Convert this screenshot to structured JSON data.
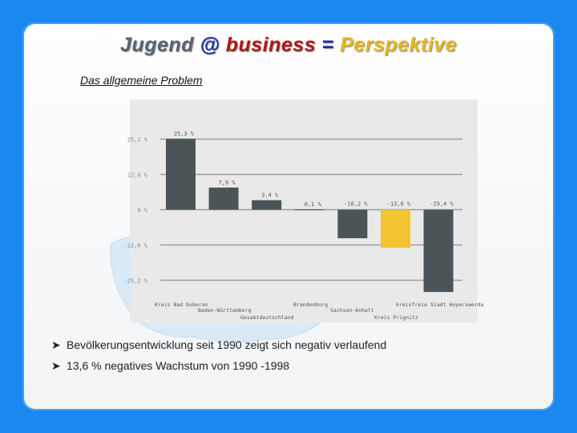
{
  "title": {
    "part1": "Jugend",
    "part2": "@",
    "part3": "business",
    "part4": "=",
    "part5": "Perspektive"
  },
  "subtitle": "Das allgemeine Problem",
  "bullets": [
    "Bevölkerungsentwicklung seit 1990 zeigt sich negativ verlaufend",
    "13,6 % negatives Wachstum von 1990 -1998"
  ],
  "bullet_icon": "arrow-right-icon",
  "colors": {
    "background": "#1a88ee",
    "bar_dark": "#4b5457",
    "bar_highlight": "#f3c431",
    "chart_bg": "#e9e9e9"
  },
  "chart_data": {
    "type": "bar",
    "title": "",
    "xlabel": "",
    "ylabel": "",
    "ylim": [
      -30,
      30
    ],
    "y_ticks": [
      25.2,
      12.6,
      0,
      -12.6,
      -25.2
    ],
    "y_tick_labels": [
      "25,2 %",
      "12,6 %",
      "0 %",
      "-12,6 %",
      "-25,2 %"
    ],
    "grid": true,
    "categories": [
      "Kreis Bad Doberan",
      "Baden-Württemberg",
      "Gesamtdeutschland",
      "Brandenburg",
      "Sachsen-Anhalt",
      "Kreis Prignitz",
      "kreisfreie Stadt Hoyerswerda"
    ],
    "values": [
      25.3,
      7.9,
      3.4,
      0.1,
      -10.2,
      -13.6,
      -29.4
    ],
    "value_labels": [
      "25,3 %",
      "7,9 %",
      "3,4 %",
      "0,1 %",
      "-10,2 %",
      "-13,6 %",
      "-29,4 %"
    ],
    "highlight_index": 5
  }
}
